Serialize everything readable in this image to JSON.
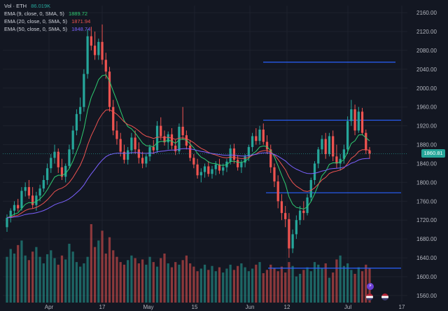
{
  "legend": {
    "volume": {
      "label": "Vol · ETH",
      "value": "86.019K",
      "color": "#26a69a"
    },
    "ema": [
      {
        "label": "EMA (9, close, 0, SMA, 5)",
        "value": "1889.72",
        "color": "#2ecc71"
      },
      {
        "label": "EMA (20, close, 0, SMA, 5)",
        "value": "1871.94",
        "color": "#ef5350"
      },
      {
        "label": "EMA (50, close, 0, SMA, 5)",
        "value": "1848.74",
        "color": "#7b61ff"
      }
    ]
  },
  "last_price": {
    "value": 1860.81,
    "label": "1860.81",
    "color": "#26a69a"
  },
  "chart_data": {
    "type": "candlestick",
    "y_ticks": [
      "2160.00",
      "2120.00",
      "2080.00",
      "2040.00",
      "2000.00",
      "1960.00",
      "1920.00",
      "1880.00",
      "1840.00",
      "1800.00",
      "1760.00",
      "1720.00",
      "1680.00",
      "1640.00",
      "1600.00",
      "1560.00"
    ],
    "ylim": [
      1545,
      2175
    ],
    "x_ticks": [
      "Apr",
      "17",
      "May",
      "15",
      "Jun",
      "12",
      "Jul",
      "17"
    ],
    "colors": {
      "up": "#26a69a",
      "down": "#ef5350",
      "hline": "#2962ff",
      "grid": "#1e222d"
    },
    "horizontal_lines": [
      2055,
      1932,
      1778,
      1618
    ],
    "candles": [
      [
        1705,
        1732,
        1695,
        1725
      ],
      [
        1725,
        1745,
        1715,
        1740
      ],
      [
        1740,
        1760,
        1730,
        1752
      ],
      [
        1752,
        1765,
        1738,
        1745
      ],
      [
        1745,
        1790,
        1740,
        1782
      ],
      [
        1782,
        1800,
        1770,
        1790
      ],
      [
        1790,
        1805,
        1765,
        1772
      ],
      [
        1772,
        1790,
        1745,
        1752
      ],
      [
        1752,
        1780,
        1740,
        1772
      ],
      [
        1772,
        1795,
        1760,
        1787
      ],
      [
        1787,
        1815,
        1780,
        1805
      ],
      [
        1805,
        1840,
        1795,
        1830
      ],
      [
        1830,
        1860,
        1820,
        1852
      ],
      [
        1852,
        1880,
        1840,
        1865
      ],
      [
        1865,
        1872,
        1820,
        1832
      ],
      [
        1832,
        1850,
        1805,
        1812
      ],
      [
        1812,
        1840,
        1800,
        1835
      ],
      [
        1835,
        1880,
        1830,
        1870
      ],
      [
        1870,
        1920,
        1860,
        1910
      ],
      [
        1910,
        1955,
        1900,
        1945
      ],
      [
        1945,
        1980,
        1930,
        1960
      ],
      [
        1960,
        2040,
        1950,
        2030
      ],
      [
        2030,
        2125,
        2020,
        2110
      ],
      [
        2110,
        2130,
        2080,
        2090
      ],
      [
        2090,
        2120,
        2060,
        2070
      ],
      [
        2070,
        2105,
        2060,
        2098
      ],
      [
        2098,
        2135,
        2050,
        2060
      ],
      [
        2060,
        2075,
        2020,
        2035
      ],
      [
        2035,
        2045,
        1950,
        1960
      ],
      [
        1960,
        1975,
        1900,
        1910
      ],
      [
        1910,
        1930,
        1880,
        1892
      ],
      [
        1892,
        1905,
        1855,
        1865
      ],
      [
        1865,
        1880,
        1840,
        1848
      ],
      [
        1848,
        1875,
        1838,
        1868
      ],
      [
        1868,
        1905,
        1860,
        1895
      ],
      [
        1895,
        1910,
        1860,
        1870
      ],
      [
        1870,
        1885,
        1840,
        1852
      ],
      [
        1852,
        1865,
        1830,
        1840
      ],
      [
        1840,
        1860,
        1832,
        1855
      ],
      [
        1855,
        1880,
        1845,
        1875
      ],
      [
        1875,
        1890,
        1860,
        1868
      ],
      [
        1868,
        1930,
        1862,
        1920
      ],
      [
        1920,
        1938,
        1890,
        1898
      ],
      [
        1898,
        1910,
        1878,
        1885
      ],
      [
        1885,
        1908,
        1870,
        1902
      ],
      [
        1902,
        1915,
        1870,
        1878
      ],
      [
        1878,
        1890,
        1858,
        1866
      ],
      [
        1866,
        1925,
        1860,
        1918
      ],
      [
        1918,
        1960,
        1890,
        1900
      ],
      [
        1900,
        1910,
        1870,
        1878
      ],
      [
        1878,
        1890,
        1845,
        1852
      ],
      [
        1852,
        1860,
        1830,
        1838
      ],
      [
        1838,
        1850,
        1808,
        1815
      ],
      [
        1815,
        1830,
        1800,
        1822
      ],
      [
        1822,
        1840,
        1810,
        1834
      ],
      [
        1834,
        1845,
        1812,
        1818
      ],
      [
        1818,
        1835,
        1808,
        1828
      ],
      [
        1828,
        1845,
        1815,
        1838
      ],
      [
        1838,
        1850,
        1818,
        1825
      ],
      [
        1825,
        1840,
        1815,
        1832
      ],
      [
        1832,
        1850,
        1822,
        1844
      ],
      [
        1844,
        1880,
        1838,
        1872
      ],
      [
        1872,
        1882,
        1840,
        1848
      ],
      [
        1848,
        1858,
        1825,
        1832
      ],
      [
        1832,
        1848,
        1820,
        1842
      ],
      [
        1842,
        1860,
        1832,
        1855
      ],
      [
        1855,
        1880,
        1845,
        1875
      ],
      [
        1875,
        1905,
        1865,
        1898
      ],
      [
        1898,
        1915,
        1880,
        1888
      ],
      [
        1888,
        1920,
        1880,
        1912
      ],
      [
        1912,
        1925,
        1880,
        1886
      ],
      [
        1886,
        1900,
        1860,
        1870
      ],
      [
        1870,
        1880,
        1820,
        1832
      ],
      [
        1832,
        1840,
        1790,
        1802
      ],
      [
        1802,
        1815,
        1745,
        1760
      ],
      [
        1760,
        1775,
        1720,
        1735
      ],
      [
        1735,
        1750,
        1705,
        1722
      ],
      [
        1722,
        1735,
        1640,
        1660
      ],
      [
        1660,
        1700,
        1650,
        1690
      ],
      [
        1690,
        1730,
        1680,
        1720
      ],
      [
        1720,
        1750,
        1710,
        1740
      ],
      [
        1740,
        1760,
        1720,
        1735
      ],
      [
        1735,
        1775,
        1730,
        1768
      ],
      [
        1768,
        1810,
        1760,
        1805
      ],
      [
        1805,
        1845,
        1795,
        1840
      ],
      [
        1840,
        1875,
        1830,
        1870
      ],
      [
        1870,
        1900,
        1860,
        1892
      ],
      [
        1892,
        1905,
        1850,
        1860
      ],
      [
        1860,
        1905,
        1855,
        1898
      ],
      [
        1898,
        1910,
        1845,
        1855
      ],
      [
        1855,
        1880,
        1830,
        1840
      ],
      [
        1840,
        1860,
        1825,
        1850
      ],
      [
        1850,
        1880,
        1840,
        1870
      ],
      [
        1870,
        1940,
        1860,
        1930
      ],
      [
        1930,
        1975,
        1920,
        1955
      ],
      [
        1955,
        1965,
        1900,
        1910
      ],
      [
        1910,
        1960,
        1905,
        1950
      ],
      [
        1950,
        1958,
        1900,
        1905
      ],
      [
        1905,
        1912,
        1860,
        1868
      ],
      [
        1868,
        1875,
        1850,
        1861
      ]
    ],
    "volumes": [
      70,
      82,
      75,
      88,
      95,
      72,
      65,
      78,
      85,
      70,
      60,
      74,
      80,
      68,
      58,
      72,
      66,
      90,
      78,
      62,
      55,
      60,
      70,
      120,
      85,
      95,
      110,
      75,
      100,
      80,
      70,
      62,
      58,
      65,
      72,
      68,
      60,
      66,
      58,
      70,
      62,
      55,
      68,
      75,
      60,
      54,
      62,
      58,
      65,
      72,
      60,
      55,
      48,
      52,
      58,
      50,
      56,
      48,
      54,
      46,
      52,
      58,
      50,
      56,
      60,
      54,
      48,
      52,
      58,
      62,
      45,
      50,
      58,
      52,
      48,
      55,
      46,
      62,
      56,
      40,
      44,
      50,
      54,
      48,
      62,
      58,
      52,
      60,
      38,
      46,
      66,
      72,
      56,
      60,
      50,
      44,
      54,
      48,
      58,
      52
    ]
  }
}
